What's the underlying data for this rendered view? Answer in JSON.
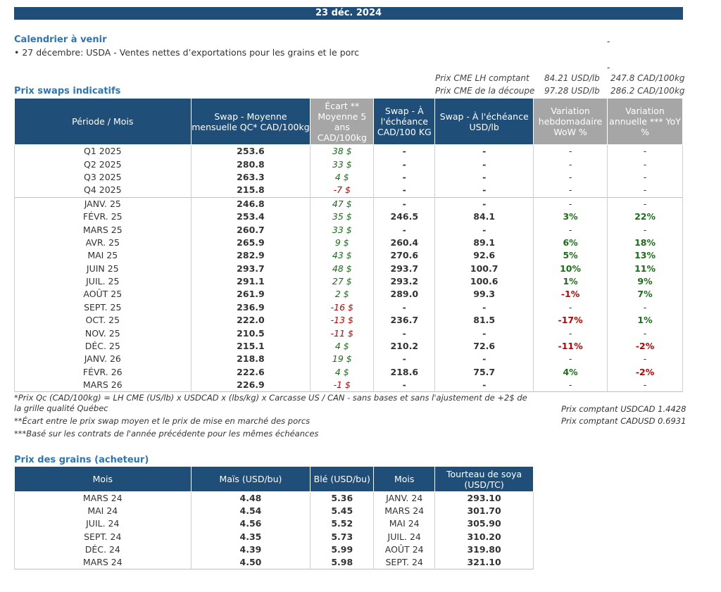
{
  "date": "23 déc. 2024",
  "calendar": {
    "title": "Calendrier à venir",
    "item": "• 27 décembre: USDA - Ventes nettes d’exportations pour les grains et le porc"
  },
  "dashes": [
    "-",
    "-"
  ],
  "reference_prices": [
    {
      "label": "Prix CME LH comptant",
      "usd": "84.21 USD/lb",
      "cad": "247.8 CAD/100kg"
    },
    {
      "label": "Prix CME de la découpe",
      "usd": "97.28 USD/lb",
      "cad": "286.2 CAD/100kg"
    }
  ],
  "swaps": {
    "title": "Prix swaps indicatifs",
    "headers": [
      "Période / Mois",
      "Swap - Moyenne mensuelle QC* CAD/100kg",
      "Écart ** Moyenne 5 ans CAD/100kg",
      "Swap - À l'échéance CAD/100 KG",
      "Swap - À l'échéance USD/lb",
      "Variation hebdomadaire WoW %",
      "Variation annuelle *** YoY %"
    ],
    "rows": [
      {
        "period": "Q1 2025",
        "avg": "253.6",
        "gap": "38 $",
        "gs": "pos",
        "cad": "-",
        "usd": "-",
        "wow": "-",
        "ws": "plain",
        "yoy": "-",
        "ys": "plain"
      },
      {
        "period": "Q2 2025",
        "avg": "280.8",
        "gap": "33 $",
        "gs": "pos",
        "cad": "-",
        "usd": "-",
        "wow": "-",
        "ws": "plain",
        "yoy": "-",
        "ys": "plain"
      },
      {
        "period": "Q3 2025",
        "avg": "263.3",
        "gap": "4 $",
        "gs": "pos",
        "cad": "-",
        "usd": "-",
        "wow": "-",
        "ws": "plain",
        "yoy": "-",
        "ys": "plain"
      },
      {
        "period": "Q4 2025",
        "avg": "215.8",
        "gap": "-7 $",
        "gs": "neg",
        "cad": "-",
        "usd": "-",
        "wow": "-",
        "ws": "plain",
        "yoy": "-",
        "ys": "plain"
      },
      {
        "period": "JANV. 25",
        "avg": "246.8",
        "gap": "47 $",
        "gs": "pos",
        "cad": "-",
        "usd": "-",
        "wow": "-",
        "ws": "plain",
        "yoy": "-",
        "ys": "plain",
        "sep": true
      },
      {
        "period": "FÉVR. 25",
        "avg": "253.4",
        "gap": "35 $",
        "gs": "pos",
        "cad": "246.5",
        "usd": "84.1",
        "wow": "3%",
        "ws": "vpos",
        "yoy": "22%",
        "ys": "vpos"
      },
      {
        "period": "MARS 25",
        "avg": "260.7",
        "gap": "33 $",
        "gs": "pos",
        "cad": "-",
        "usd": "-",
        "wow": "-",
        "ws": "plain",
        "yoy": "-",
        "ys": "plain"
      },
      {
        "period": "AVR. 25",
        "avg": "265.9",
        "gap": "9 $",
        "gs": "pos",
        "cad": "260.4",
        "usd": "89.1",
        "wow": "6%",
        "ws": "vpos",
        "yoy": "18%",
        "ys": "vpos"
      },
      {
        "period": "MAI 25",
        "avg": "282.9",
        "gap": "43 $",
        "gs": "pos",
        "cad": "270.6",
        "usd": "92.6",
        "wow": "5%",
        "ws": "vpos",
        "yoy": "13%",
        "ys": "vpos"
      },
      {
        "period": "JUIN 25",
        "avg": "293.7",
        "gap": "48 $",
        "gs": "pos",
        "cad": "293.7",
        "usd": "100.7",
        "wow": "10%",
        "ws": "vpos",
        "yoy": "11%",
        "ys": "vpos"
      },
      {
        "period": "JUIL. 25",
        "avg": "291.1",
        "gap": "27 $",
        "gs": "pos",
        "cad": "293.2",
        "usd": "100.6",
        "wow": "1%",
        "ws": "vpos",
        "yoy": "9%",
        "ys": "vpos"
      },
      {
        "period": "AOÛT 25",
        "avg": "261.9",
        "gap": "2 $",
        "gs": "pos",
        "cad": "289.0",
        "usd": "99.3",
        "wow": "-1%",
        "ws": "vneg",
        "yoy": "7%",
        "ys": "vpos"
      },
      {
        "period": "SEPT. 25",
        "avg": "236.9",
        "gap": "-16 $",
        "gs": "neg",
        "cad": "-",
        "usd": "-",
        "wow": "-",
        "ws": "plain",
        "yoy": "-",
        "ys": "plain"
      },
      {
        "period": "OCT. 25",
        "avg": "222.0",
        "gap": "-13 $",
        "gs": "neg",
        "cad": "236.7",
        "usd": "81.5",
        "wow": "-17%",
        "ws": "vneg",
        "yoy": "1%",
        "ys": "vpos"
      },
      {
        "period": "NOV. 25",
        "avg": "210.5",
        "gap": "-11 $",
        "gs": "neg",
        "cad": "-",
        "usd": "-",
        "wow": "-",
        "ws": "plain",
        "yoy": "-",
        "ys": "plain"
      },
      {
        "period": "DÉC. 25",
        "avg": "215.1",
        "gap": "4 $",
        "gs": "pos",
        "cad": "210.2",
        "usd": "72.6",
        "wow": "-11%",
        "ws": "vneg",
        "yoy": "-2%",
        "ys": "vneg"
      },
      {
        "period": "JANV. 26",
        "avg": "218.8",
        "gap": "19 $",
        "gs": "pos",
        "cad": "-",
        "usd": "-",
        "wow": "-",
        "ws": "plain",
        "yoy": "-",
        "ys": "plain"
      },
      {
        "period": "FÉVR. 26",
        "avg": "222.6",
        "gap": "4 $",
        "gs": "pos",
        "cad": "218.6",
        "usd": "75.7",
        "wow": "4%",
        "ws": "vpos",
        "yoy": "-2%",
        "ys": "vneg"
      },
      {
        "period": "MARS 26",
        "avg": "226.9",
        "gap": "-1 $",
        "gs": "neg",
        "cad": "-",
        "usd": "-",
        "wow": "-",
        "ws": "plain",
        "yoy": "-",
        "ys": "plain"
      }
    ]
  },
  "notes": {
    "note1": "*Prix Qc (CAD/100kg) = LH CME (US/lb) x USDCAD x (lbs/kg) x Carcasse US / CAN - sans bases et sans l'ajustement de +2$ de la grille qualité Québec",
    "note2": "**Écart entre le prix swap moyen et le prix de mise en marché des porcs",
    "note3": "***Basé sur les contrats de l'année précédente pour les mêmes échéances",
    "fx1": "Prix comptant USDCAD 1.4428",
    "fx2": "Prix comptant CADUSD 0.6931"
  },
  "grains": {
    "title": "Prix des grains (acheteur)",
    "headers": [
      "Mois",
      "Maïs (USD/bu)",
      "Blé (USD/bu)",
      "Mois",
      "Tourteau de soya (USD/TC)"
    ],
    "rows": [
      {
        "month": "MARS 24",
        "corn": "4.48",
        "wheat": "5.36",
        "month2": "JANV. 24",
        "soy": "293.10"
      },
      {
        "month": "MAI 24",
        "corn": "4.54",
        "wheat": "5.45",
        "month2": "MARS 24",
        "soy": "301.70"
      },
      {
        "month": "JUIL. 24",
        "corn": "4.56",
        "wheat": "5.52",
        "month2": "MAI 24",
        "soy": "305.90"
      },
      {
        "month": "SEPT. 24",
        "corn": "4.35",
        "wheat": "5.73",
        "month2": "JUIL. 24",
        "soy": "310.20"
      },
      {
        "month": "DÉC. 24",
        "corn": "4.39",
        "wheat": "5.99",
        "month2": "AOÛT 24",
        "soy": "319.80"
      },
      {
        "month": "MARS 24",
        "corn": "4.50",
        "wheat": "5.98",
        "month2": "SEPT. 24",
        "soy": "321.10"
      }
    ]
  }
}
